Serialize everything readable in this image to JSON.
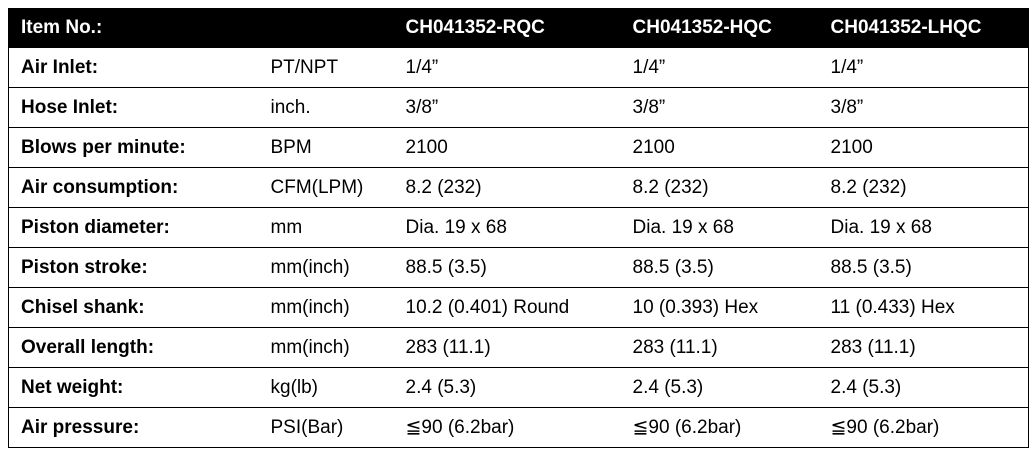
{
  "table": {
    "header": {
      "title": "Item No.:",
      "models": [
        "CH041352-RQC",
        "CH041352-HQC",
        "CH041352-LHQC"
      ]
    },
    "rows": [
      {
        "label": "Air Inlet:",
        "unit": "PT/NPT",
        "values": [
          "1/4”",
          "1/4”",
          "1/4”"
        ]
      },
      {
        "label": "Hose Inlet:",
        "unit": "inch.",
        "values": [
          "3/8”",
          "3/8”",
          "3/8”"
        ]
      },
      {
        "label": "Blows per minute:",
        "unit": "BPM",
        "values": [
          "2100",
          "2100",
          "2100"
        ]
      },
      {
        "label": "Air consumption:",
        "unit": "CFM(LPM)",
        "values": [
          "8.2 (232)",
          "8.2 (232)",
          "8.2 (232)"
        ]
      },
      {
        "label": "Piston diameter:",
        "unit": "mm",
        "values": [
          "Dia. 19 x 68",
          "Dia. 19 x 68",
          "Dia. 19 x 68"
        ]
      },
      {
        "label": "Piston stroke:",
        "unit": "mm(inch)",
        "values": [
          "88.5 (3.5)",
          "88.5 (3.5)",
          "88.5 (3.5)"
        ]
      },
      {
        "label": "Chisel shank:",
        "unit": "mm(inch)",
        "values": [
          "10.2 (0.401) Round",
          "10 (0.393) Hex",
          "11 (0.433) Hex"
        ]
      },
      {
        "label": "Overall length:",
        "unit": "mm(inch)",
        "values": [
          "283 (11.1)",
          "283 (11.1)",
          "283 (11.1)"
        ]
      },
      {
        "label": "Net weight:",
        "unit": "kg(lb)",
        "values": [
          "2.4 (5.3)",
          "2.4 (5.3)",
          "2.4 (5.3)"
        ]
      },
      {
        "label": "Air pressure:",
        "unit": "PSI(Bar)",
        "values": [
          "≦90 (6.2bar)",
          "≦90 (6.2bar)",
          "≦90 (6.2bar)"
        ]
      }
    ]
  }
}
